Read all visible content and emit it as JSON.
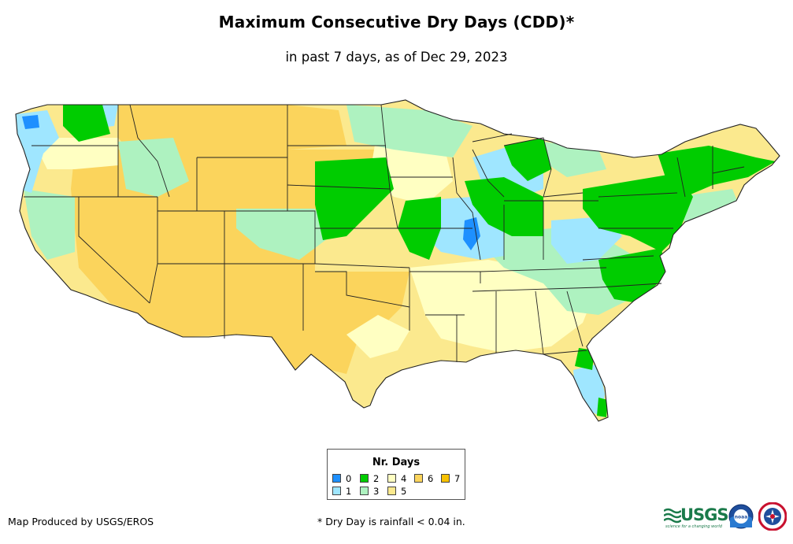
{
  "title": "Maximum Consecutive Dry Days (CDD)*",
  "subtitle": "in past 7 days, as of Dec 29, 2023",
  "legend": {
    "title": "Nr. Days",
    "items": [
      {
        "label": "0",
        "color": "#1e90ff"
      },
      {
        "label": "1",
        "color": "#9fe6ff"
      },
      {
        "label": "2",
        "color": "#00cc00"
      },
      {
        "label": "3",
        "color": "#aef2c0"
      },
      {
        "label": "4",
        "color": "#ffffc2"
      },
      {
        "label": "5",
        "color": "#fbe98e"
      },
      {
        "label": "6",
        "color": "#fbd45c"
      },
      {
        "label": "7",
        "color": "#f7c100"
      }
    ]
  },
  "footer": {
    "credit": "Map Produced by USGS/EROS",
    "note": "* Dry Day is rainfall < 0.04 in."
  },
  "logos": {
    "usgs": {
      "text": "USGS",
      "tagline": "science for a changing world",
      "color": "#1a7a4a"
    },
    "noaa": {
      "text": "noaa"
    }
  }
}
